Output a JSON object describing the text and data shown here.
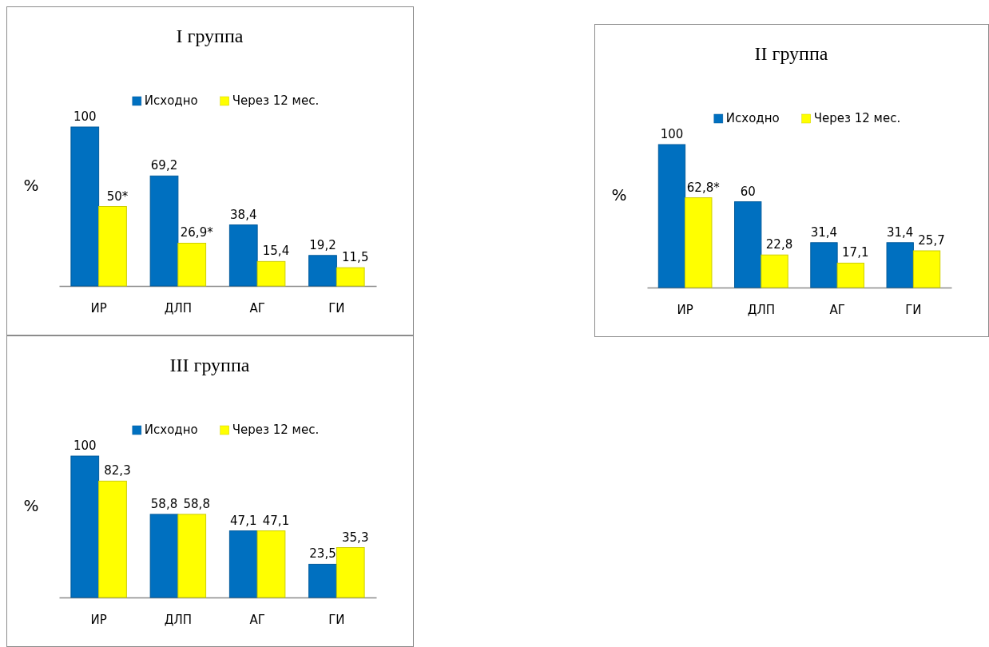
{
  "chart_data": [
    {
      "type": "bar",
      "title": "I группа",
      "ylabel": "%",
      "categories": [
        "ИР",
        "ДЛП",
        "АГ",
        "ГИ"
      ],
      "legend": "top",
      "tick_labels": "x",
      "series": [
        {
          "name": "Исходно",
          "color": "#0070c0",
          "values": [
            100,
            69.2,
            38.4,
            19.2
          ],
          "value_labels": [
            "100",
            "69,2",
            "38,4",
            "19,2"
          ]
        },
        {
          "name": "Через 12 мес.",
          "color": "#ffff00",
          "values": [
            50,
            26.9,
            15.4,
            11.5
          ],
          "value_labels": [
            "50*",
            "26,9*",
            "15,4",
            "11,5"
          ]
        }
      ]
    },
    {
      "type": "bar",
      "title": "II группа",
      "ylabel": "%",
      "categories": [
        "ИР",
        "ДЛП",
        "АГ",
        "ГИ"
      ],
      "legend": "top",
      "tick_labels": "x",
      "series": [
        {
          "name": "Исходно",
          "color": "#0070c0",
          "values": [
            100,
            60,
            31.4,
            31.4
          ],
          "value_labels": [
            "100",
            "60",
            "31,4",
            "31,4"
          ]
        },
        {
          "name": "Через 12 мес.",
          "color": "#ffff00",
          "values": [
            62.8,
            22.8,
            17.1,
            25.7
          ],
          "value_labels": [
            "62,8*",
            "22,8",
            "17,1",
            "25,7"
          ]
        }
      ]
    },
    {
      "type": "bar",
      "title": "III группа",
      "ylabel": "%",
      "categories": [
        "ИР",
        "ДЛП",
        "АГ",
        "ГИ"
      ],
      "legend": "top",
      "tick_labels": "x",
      "series": [
        {
          "name": "Исходно",
          "color": "#0070c0",
          "values": [
            100,
            58.8,
            47.1,
            23.5
          ],
          "value_labels": [
            "100",
            "58,8",
            "47,1",
            "23,5"
          ]
        },
        {
          "name": "Через 12 мес.",
          "color": "#ffff00",
          "values": [
            82.3,
            58.8,
            47.1,
            35.3
          ],
          "value_labels": [
            "82,3",
            "58,8",
            "47,1",
            "35,3"
          ]
        }
      ]
    }
  ]
}
